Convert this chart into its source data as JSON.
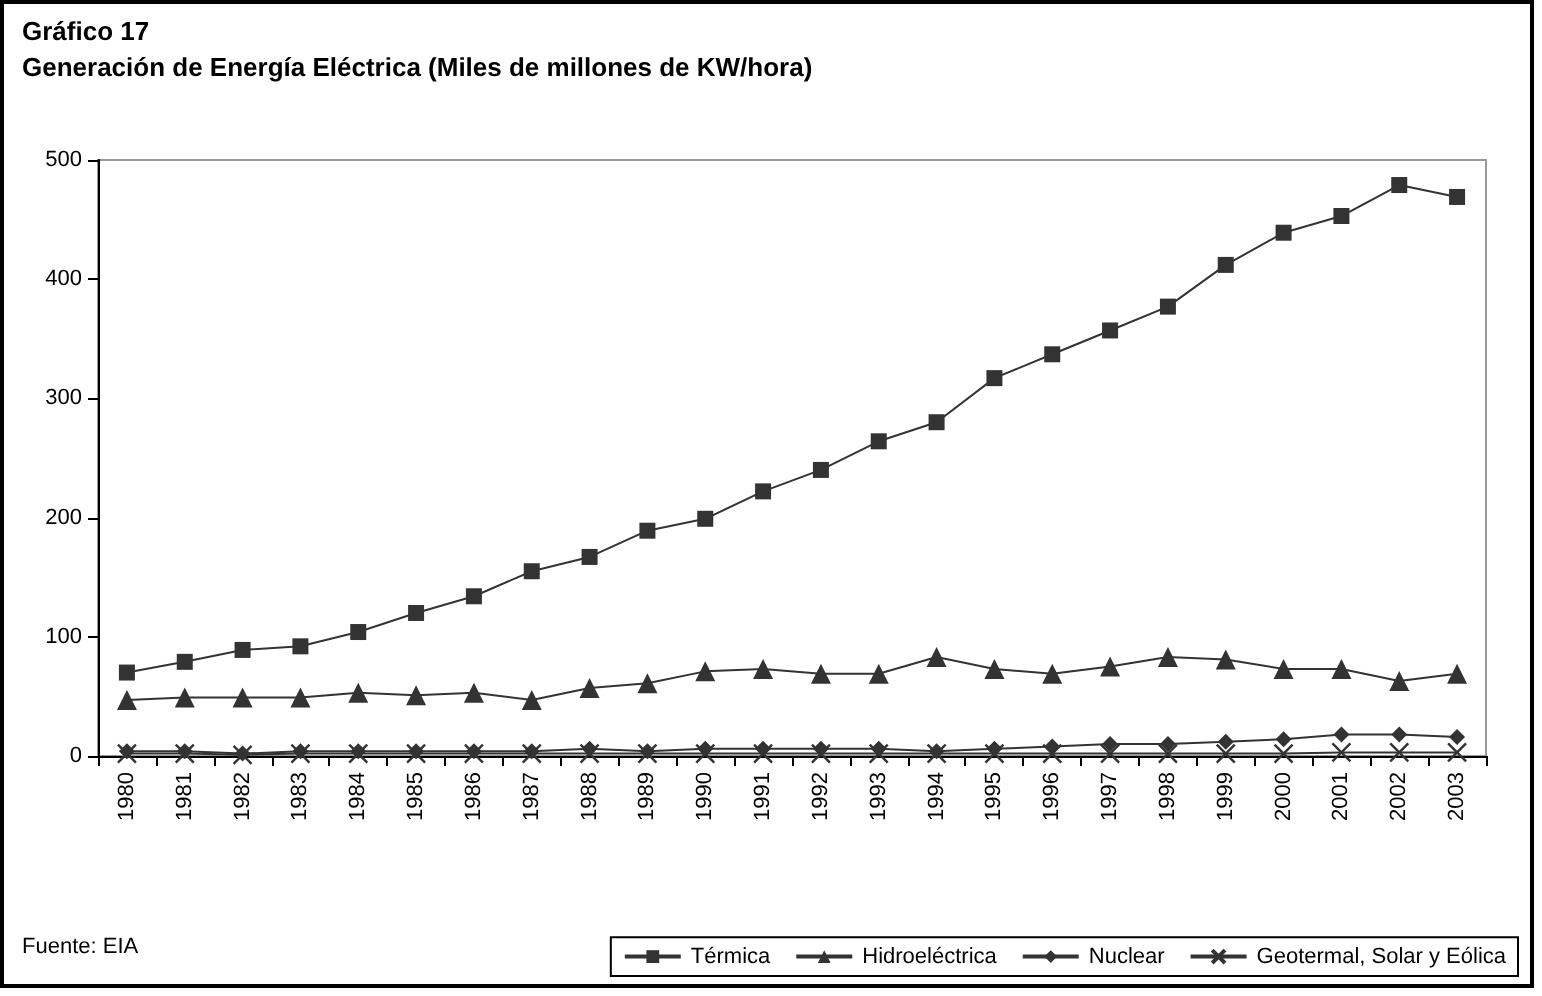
{
  "chart_data": {
    "type": "line",
    "title": "Gráfico 17",
    "subtitle": "Generación de Energía Eléctrica (Miles de millones de KW/hora)",
    "annotations": [
      "Fuente: EIA"
    ],
    "categories": [
      "1980",
      "1981",
      "1982",
      "1983",
      "1984",
      "1985",
      "1986",
      "1987",
      "1988",
      "1989",
      "1990",
      "1991",
      "1992",
      "1993",
      "1994",
      "1995",
      "1996",
      "1997",
      "1998",
      "1999",
      "2000",
      "2001",
      "2002",
      "2003"
    ],
    "series": [
      {
        "name": "Térmica",
        "color": "#333333",
        "marker": "square",
        "values": [
          70,
          79,
          89,
          92,
          104,
          120,
          134,
          155,
          167,
          189,
          199,
          222,
          240,
          264,
          280,
          317,
          337,
          357,
          377,
          412,
          439,
          453,
          479,
          469
        ]
      },
      {
        "name": "Hidroeléctrica",
        "color": "#333333",
        "marker": "triangle",
        "values": [
          47,
          49,
          49,
          49,
          53,
          51,
          53,
          47,
          57,
          61,
          71,
          73,
          69,
          69,
          83,
          73,
          69,
          75,
          83,
          81,
          73,
          73,
          63,
          69
        ]
      },
      {
        "name": "Nuclear",
        "color": "#333333",
        "marker": "diamond",
        "values": [
          4,
          4,
          2,
          4,
          4,
          4,
          4,
          4,
          6,
          4,
          6,
          6,
          6,
          6,
          4,
          6,
          8,
          10,
          10,
          12,
          14,
          18,
          18,
          16
        ]
      },
      {
        "name": "Geotermal, Solar y Eólica",
        "color": "#333333",
        "marker": "cross",
        "values": [
          2,
          2,
          1,
          2,
          2,
          2,
          2,
          2,
          2,
          2,
          2,
          2,
          2,
          2,
          2,
          2,
          2,
          2,
          2,
          2,
          2,
          3,
          3,
          3
        ]
      }
    ],
    "ylim": [
      0,
      500
    ],
    "yticks": [
      0,
      100,
      200,
      300,
      400,
      500
    ],
    "grid": false,
    "legend": "bottom right",
    "line_style": "solid"
  }
}
